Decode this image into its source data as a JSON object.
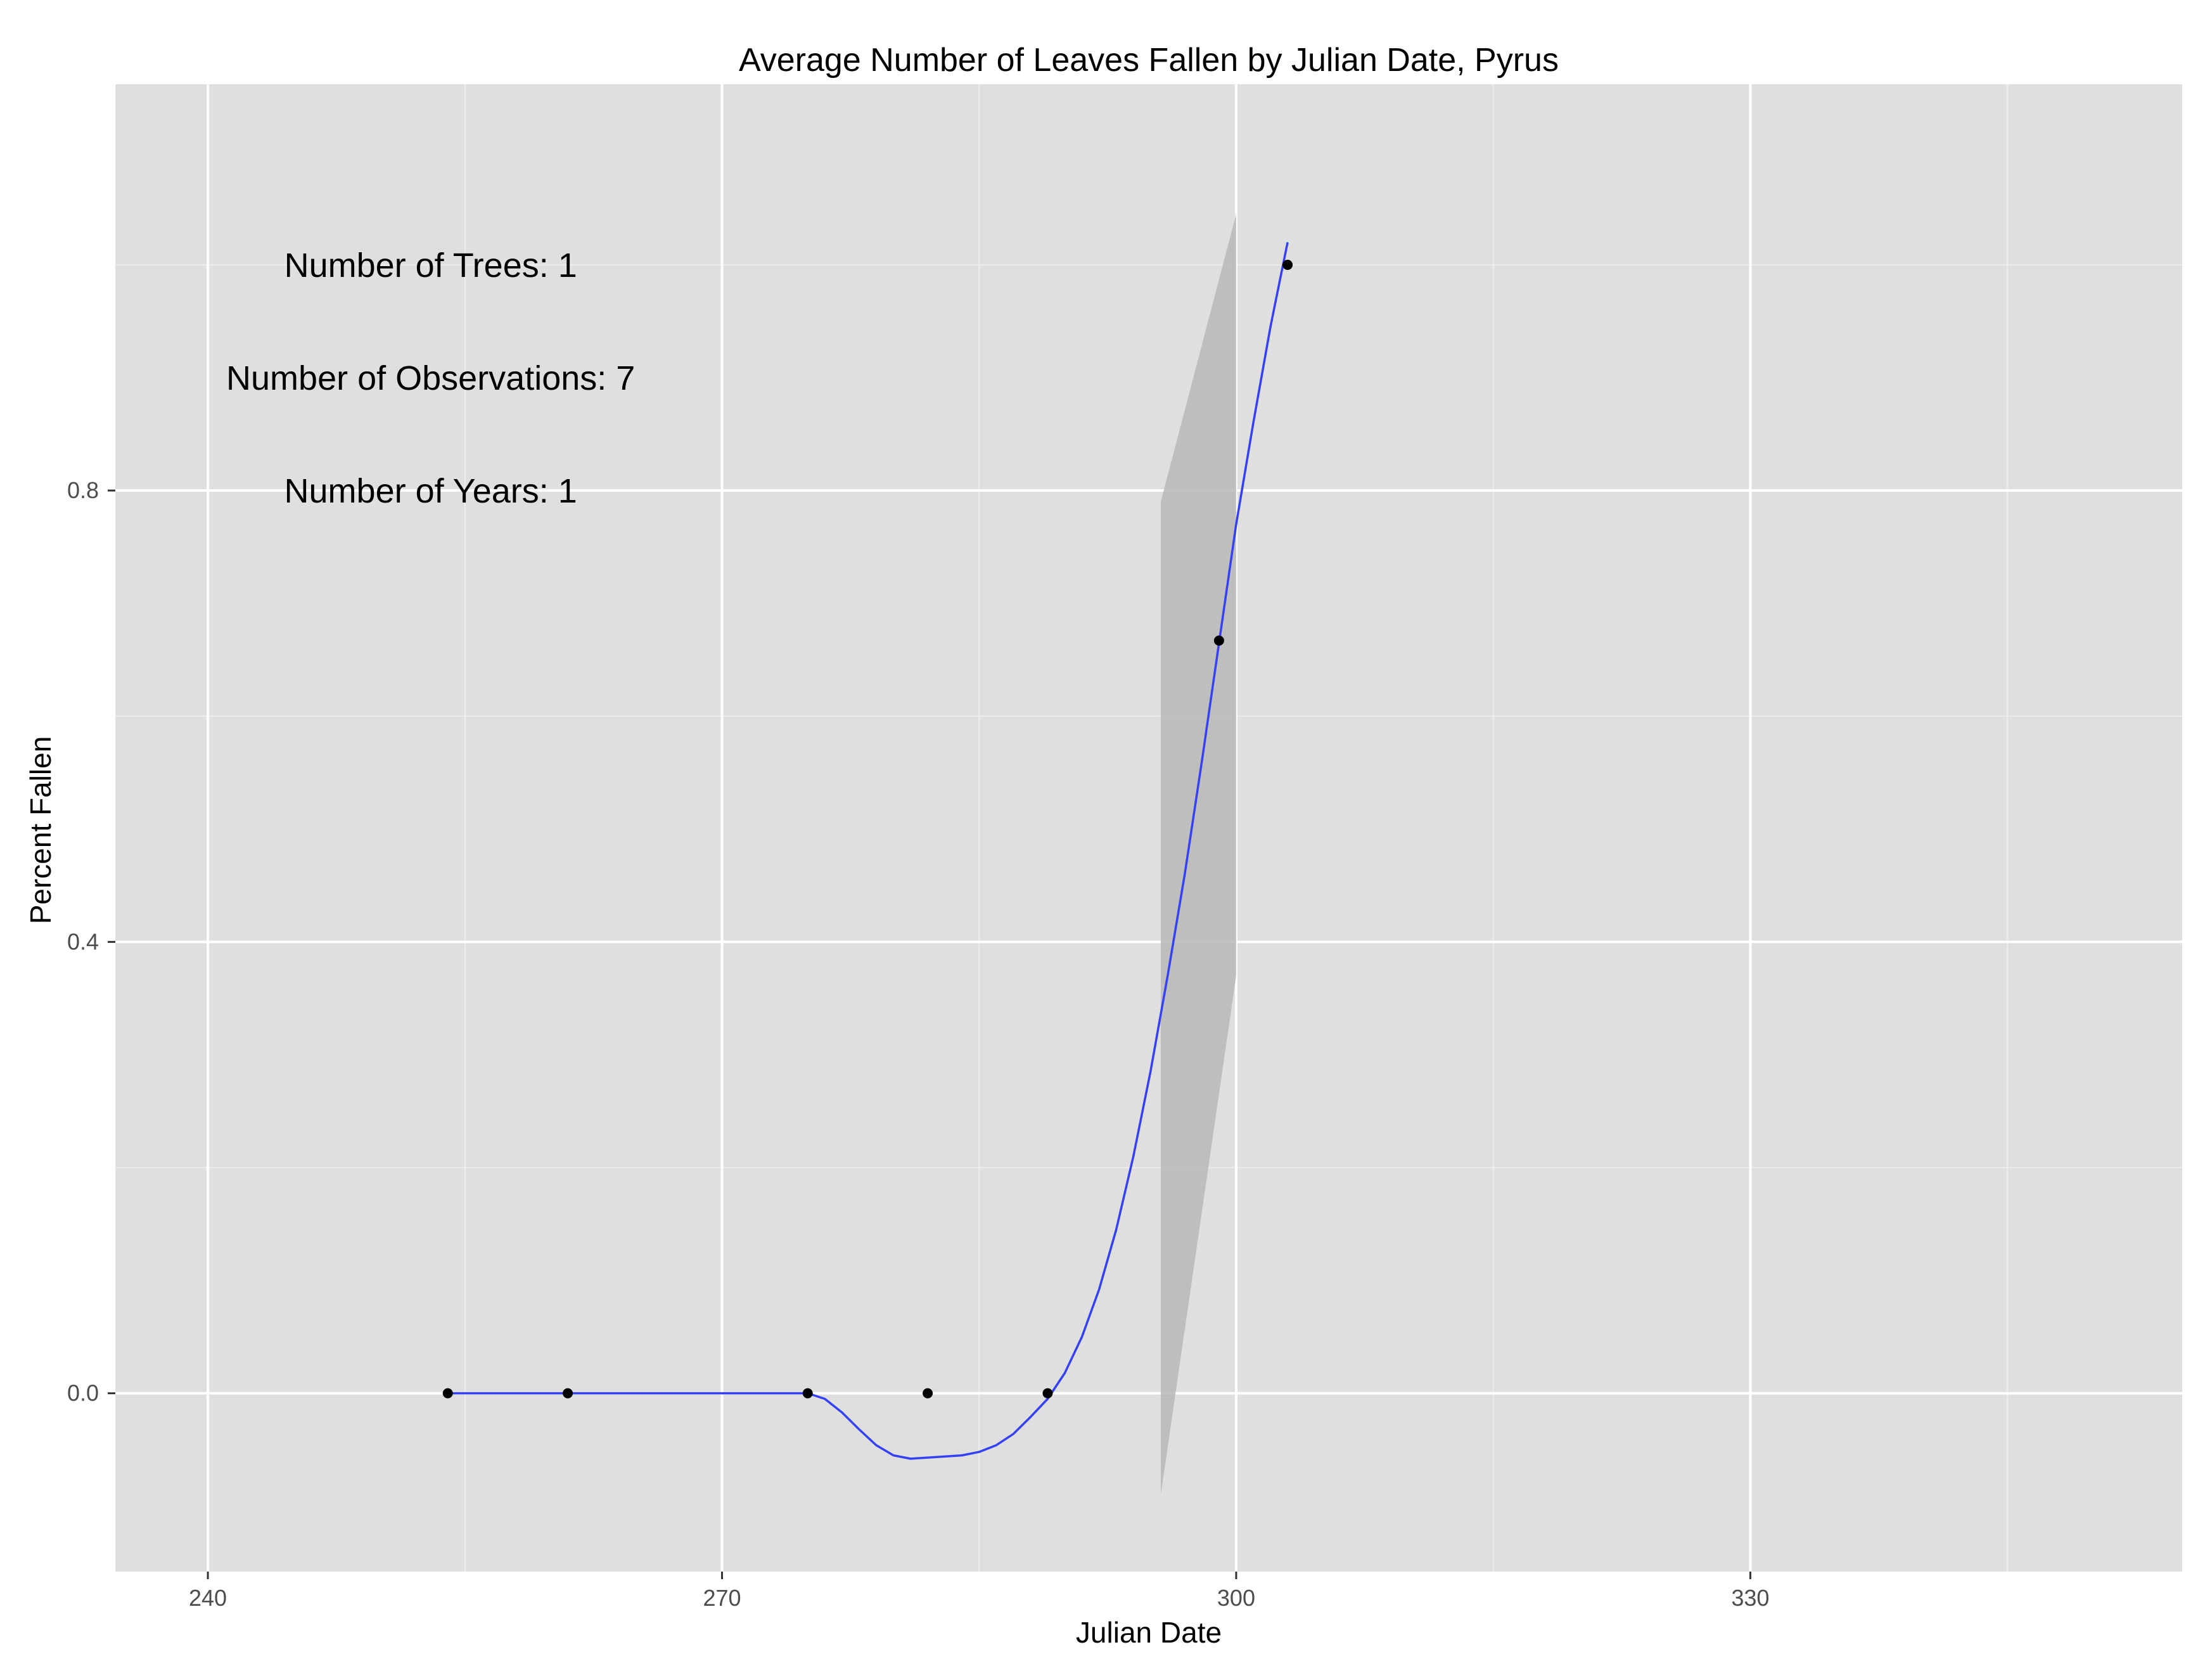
{
  "chart_data": {
    "type": "scatter",
    "title": "Average Number of Leaves Fallen by Julian Date, Pyrus",
    "xlabel": "Julian Date",
    "ylabel": "Percent Fallen",
    "xlim": [
      234.6,
      355.2
    ],
    "ylim": [
      -0.158,
      1.16
    ],
    "x_ticks": [
      240,
      270,
      300,
      330
    ],
    "x_tick_labels": [
      "240",
      "270",
      "300",
      "330"
    ],
    "x_minor_ticks": [
      255,
      285,
      315,
      345
    ],
    "y_ticks": [
      0.0,
      0.4,
      0.8
    ],
    "y_tick_labels": [
      "0.0",
      "0.4",
      "0.8"
    ],
    "y_minor_ticks": [
      0.2,
      0.6,
      1.0
    ],
    "grid": true,
    "legend": "none",
    "points": [
      {
        "x": 254,
        "y": 0.0
      },
      {
        "x": 261,
        "y": 0.0
      },
      {
        "x": 275,
        "y": 0.0
      },
      {
        "x": 282,
        "y": 0.0
      },
      {
        "x": 289,
        "y": 0.0
      },
      {
        "x": 299,
        "y": 0.667
      },
      {
        "x": 303,
        "y": 1.0
      }
    ],
    "smooth_line": {
      "x": [
        254,
        256,
        258,
        260,
        262,
        264,
        266,
        268,
        270,
        272,
        274,
        275,
        276,
        277,
        278,
        279,
        280,
        281,
        282,
        283,
        284,
        285,
        286,
        287,
        288,
        289,
        290,
        291,
        292,
        293,
        294,
        295,
        296,
        297,
        298,
        299,
        300,
        301,
        302,
        303
      ],
      "y": [
        0.0,
        0.0,
        0.0,
        0.0,
        0.0,
        0.0,
        0.0,
        0.0,
        0.0,
        0.0,
        0.0,
        0.0,
        -0.005,
        -0.017,
        -0.032,
        -0.046,
        -0.055,
        -0.058,
        -0.057,
        -0.056,
        -0.055,
        -0.052,
        -0.046,
        -0.036,
        -0.021,
        -0.005,
        0.018,
        0.05,
        0.092,
        0.145,
        0.21,
        0.285,
        0.37,
        0.46,
        0.56,
        0.665,
        0.77,
        0.86,
        0.945,
        1.02
      ]
    },
    "confidence_band": {
      "x": [
        295.6,
        300
      ],
      "upper": [
        0.79,
        1.045
      ],
      "lower": [
        -0.09,
        0.37
      ]
    },
    "annotations": [
      {
        "text": "Number of Trees: 1",
        "x": 253,
        "y": 1.0
      },
      {
        "text": "Number of Observations: 7",
        "x": 253,
        "y": 0.9
      },
      {
        "text": "Number of Years: 1",
        "x": 253,
        "y": 0.8
      }
    ],
    "colors": {
      "panel": "#DFDFDF",
      "grid_major": "#FFFFFF",
      "grid_minor": "#EDEDED",
      "line": "#3440F5",
      "band": "#B9B9B9",
      "point": "#000000",
      "tick_label": "#4D4D4D",
      "text": "#000000"
    }
  }
}
